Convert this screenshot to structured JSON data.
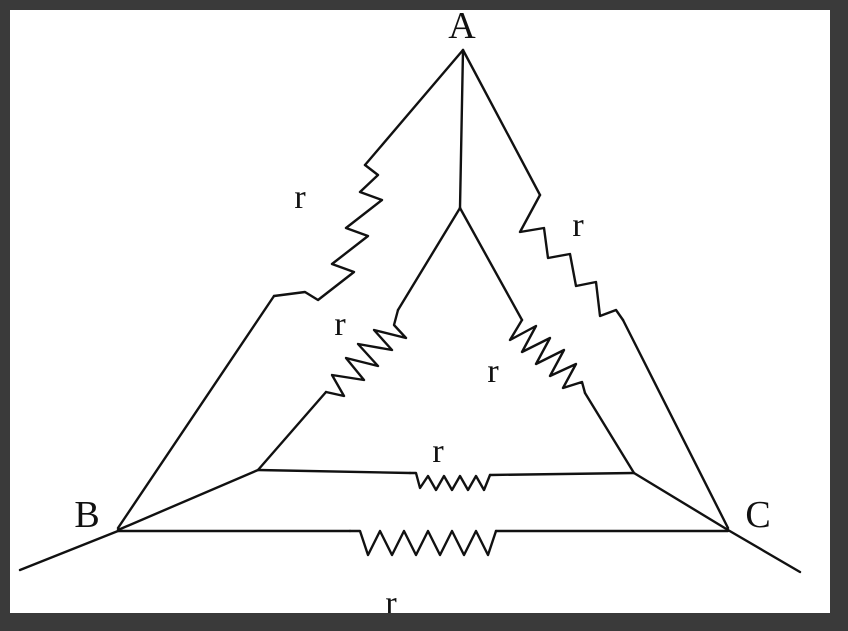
{
  "diagram": {
    "nodes": {
      "A": "A",
      "B": "B",
      "C": "C"
    },
    "resistor_label": "r",
    "resistors": [
      {
        "id": "outer-ab",
        "label": "r",
        "between": [
          "A",
          "B"
        ]
      },
      {
        "id": "outer-ac",
        "label": "r",
        "between": [
          "A",
          "C"
        ]
      },
      {
        "id": "outer-bc",
        "label": "r",
        "between": [
          "B",
          "C"
        ]
      },
      {
        "id": "inner-left",
        "label": "r",
        "between": [
          "inner-top",
          "inner-left"
        ]
      },
      {
        "id": "inner-right",
        "label": "r",
        "between": [
          "inner-top",
          "inner-right"
        ]
      },
      {
        "id": "inner-bottom",
        "label": "r",
        "between": [
          "inner-left",
          "inner-right"
        ]
      }
    ]
  }
}
